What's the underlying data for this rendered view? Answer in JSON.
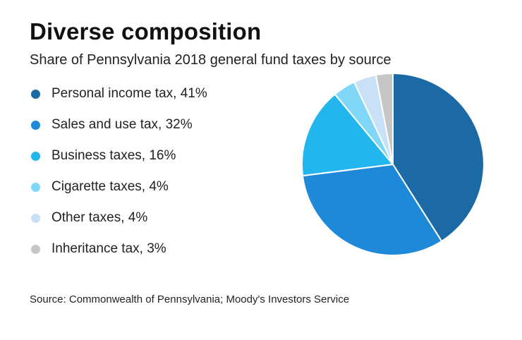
{
  "chart_data": {
    "type": "pie",
    "title": "Diverse composition",
    "subtitle": "Share of Pennsylvania 2018 general fund taxes by source",
    "slices": [
      {
        "label": "Personal income tax, 41%",
        "value": 41,
        "color": "#1b6aa5"
      },
      {
        "label": "Sales and use tax, 32%",
        "value": 32,
        "color": "#1e88d9"
      },
      {
        "label": "Business taxes, 16%",
        "value": 16,
        "color": "#23b5ee"
      },
      {
        "label": "Cigarette taxes, 4%",
        "value": 4,
        "color": "#7fd6f7"
      },
      {
        "label": "Other taxes, 4%",
        "value": 4,
        "color": "#c9e1f7"
      },
      {
        "label": "Inheritance tax, 3%",
        "value": 3,
        "color": "#c6c6c6"
      }
    ],
    "legend_position": "left",
    "source": "Source: Commonwealth of Pennsylvania; Moody's Investors Service"
  }
}
